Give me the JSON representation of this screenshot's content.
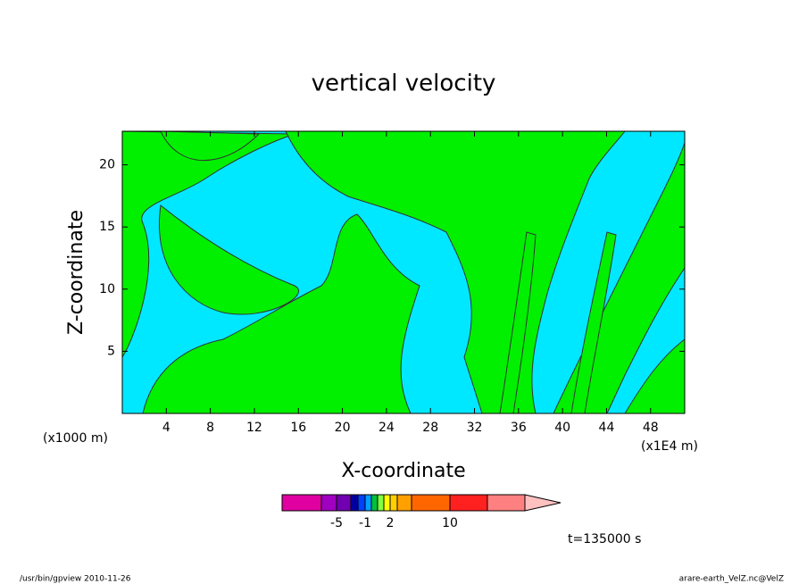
{
  "chart_data": {
    "type": "contour",
    "title": "vertical velocity",
    "xlabel": "X-coordinate",
    "ylabel": "Z-coordinate",
    "x_unit_left": "(x1000 m)",
    "x_unit_right": "(x1E4 m)",
    "xlim": [
      0,
      51.1
    ],
    "xticks": [
      4,
      8,
      12,
      16,
      20,
      24,
      28,
      32,
      36,
      40,
      44,
      48
    ],
    "ylim": [
      0,
      22.7
    ],
    "yticks": [
      5,
      10,
      15,
      20
    ],
    "field_colors": [
      "#00e8ff",
      "#00f000"
    ],
    "colorbar_colors": [
      "#e000a0",
      "#a000c0",
      "#7000b0",
      "#0000a0",
      "#0040ff",
      "#00a0ff",
      "#00c040",
      "#80ff40",
      "#ffff00",
      "#ffd000",
      "#ffa000",
      "#ff6600",
      "#ff2020",
      "#ff8080",
      "#ffc0c0"
    ],
    "colorbar_labels": [
      -5,
      -1,
      2,
      10
    ],
    "time_label": "t=135000 s",
    "footer_left": "/usr/bin/gpview   2010-11-26",
    "footer_right": "arare-earth_VelZ.nc@VelZ"
  }
}
